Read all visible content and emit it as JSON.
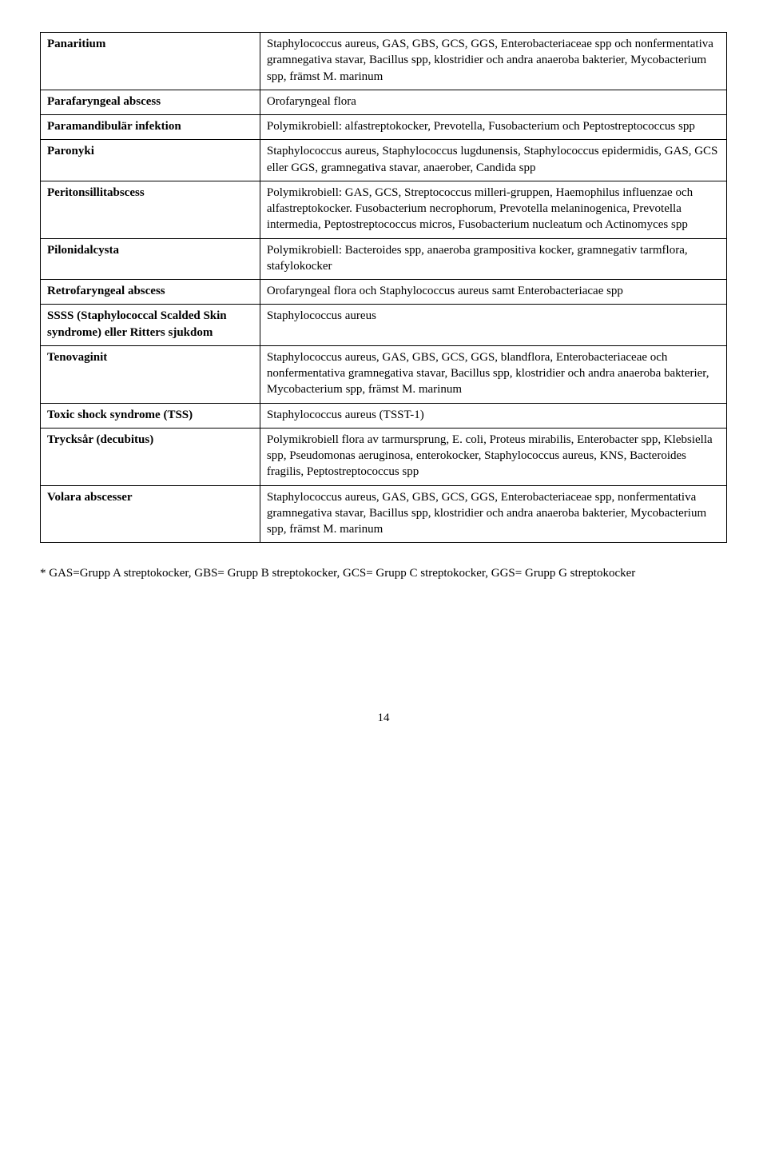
{
  "table": {
    "rows": [
      {
        "label": "Panaritium",
        "text": "Staphylococcus aureus, GAS, GBS, GCS, GGS, Enterobacteriaceae spp och nonfermentativa gramnegativa stavar, Bacillus spp, klostridier och andra anaeroba bakterier, Mycobacterium spp, främst M. marinum"
      },
      {
        "label": "Parafaryngeal abscess",
        "text": "Orofaryngeal flora"
      },
      {
        "label": "Paramandibulär infektion",
        "text": "Polymikrobiell: alfastreptokocker, Prevotella, Fusobacterium och Peptostreptococcus spp"
      },
      {
        "label": "Paronyki",
        "text": "Staphylococcus aureus, Staphylococcus lugdunensis, Staphylococcus epidermidis, GAS, GCS eller GGS, gramnegativa stavar, anaerober, Candida spp"
      },
      {
        "label": "Peritonsillitabscess",
        "text": "Polymikrobiell: GAS, GCS, Streptococcus milleri-gruppen, Haemophilus influenzae och alfastreptokocker. Fusobacterium necrophorum, Prevotella melaninogenica, Prevotella intermedia, Peptostreptococcus micros, Fusobacterium nucleatum och Actinomyces spp"
      },
      {
        "label": "Pilonidalcysta",
        "text": "Polymikrobiell: Bacteroides spp, anaeroba grampositiva kocker, gramnegativ tarmflora, stafylokocker"
      },
      {
        "label": "Retrofaryngeal abscess",
        "text": "Orofaryngeal flora och Staphylococcus aureus samt Enterobacteriacae spp"
      },
      {
        "label": "SSSS (Staphylococcal Scalded Skin syndrome) eller Ritters sjukdom",
        "text": "Staphylococcus aureus"
      },
      {
        "label": "Tenovaginit",
        "text": "Staphylococcus aureus, GAS, GBS, GCS, GGS, blandflora, Enterobacteriaceae och nonfermentativa gramnegativa stavar, Bacillus spp, klostridier och andra anaeroba bakterier, Mycobacterium spp, främst M. marinum"
      },
      {
        "label": "Toxic shock syndrome (TSS)",
        "text": "Staphylococcus aureus (TSST-1)"
      },
      {
        "label": "Trycksår (decubitus)",
        "text": "Polymikrobiell flora av tarmursprung, E. coli, Proteus mirabilis, Enterobacter spp, Klebsiella spp, Pseudomonas aeruginosa, enterokocker, Staphylococcus aureus, KNS, Bacteroides fragilis, Peptostreptococcus spp"
      },
      {
        "label": "Volara abscesser",
        "text": "Staphylococcus aureus, GAS, GBS, GCS, GGS, Enterobacteriaceae spp, nonfermentativa gramnegativa stavar, Bacillus spp, klostridier och andra anaeroba bakterier, Mycobacterium spp, främst M. marinum"
      }
    ]
  },
  "footnote": "* GAS=Grupp A streptokocker,  GBS= Grupp B streptokocker, GCS= Grupp C streptokocker, GGS= Grupp G streptokocker",
  "page_number": "14"
}
